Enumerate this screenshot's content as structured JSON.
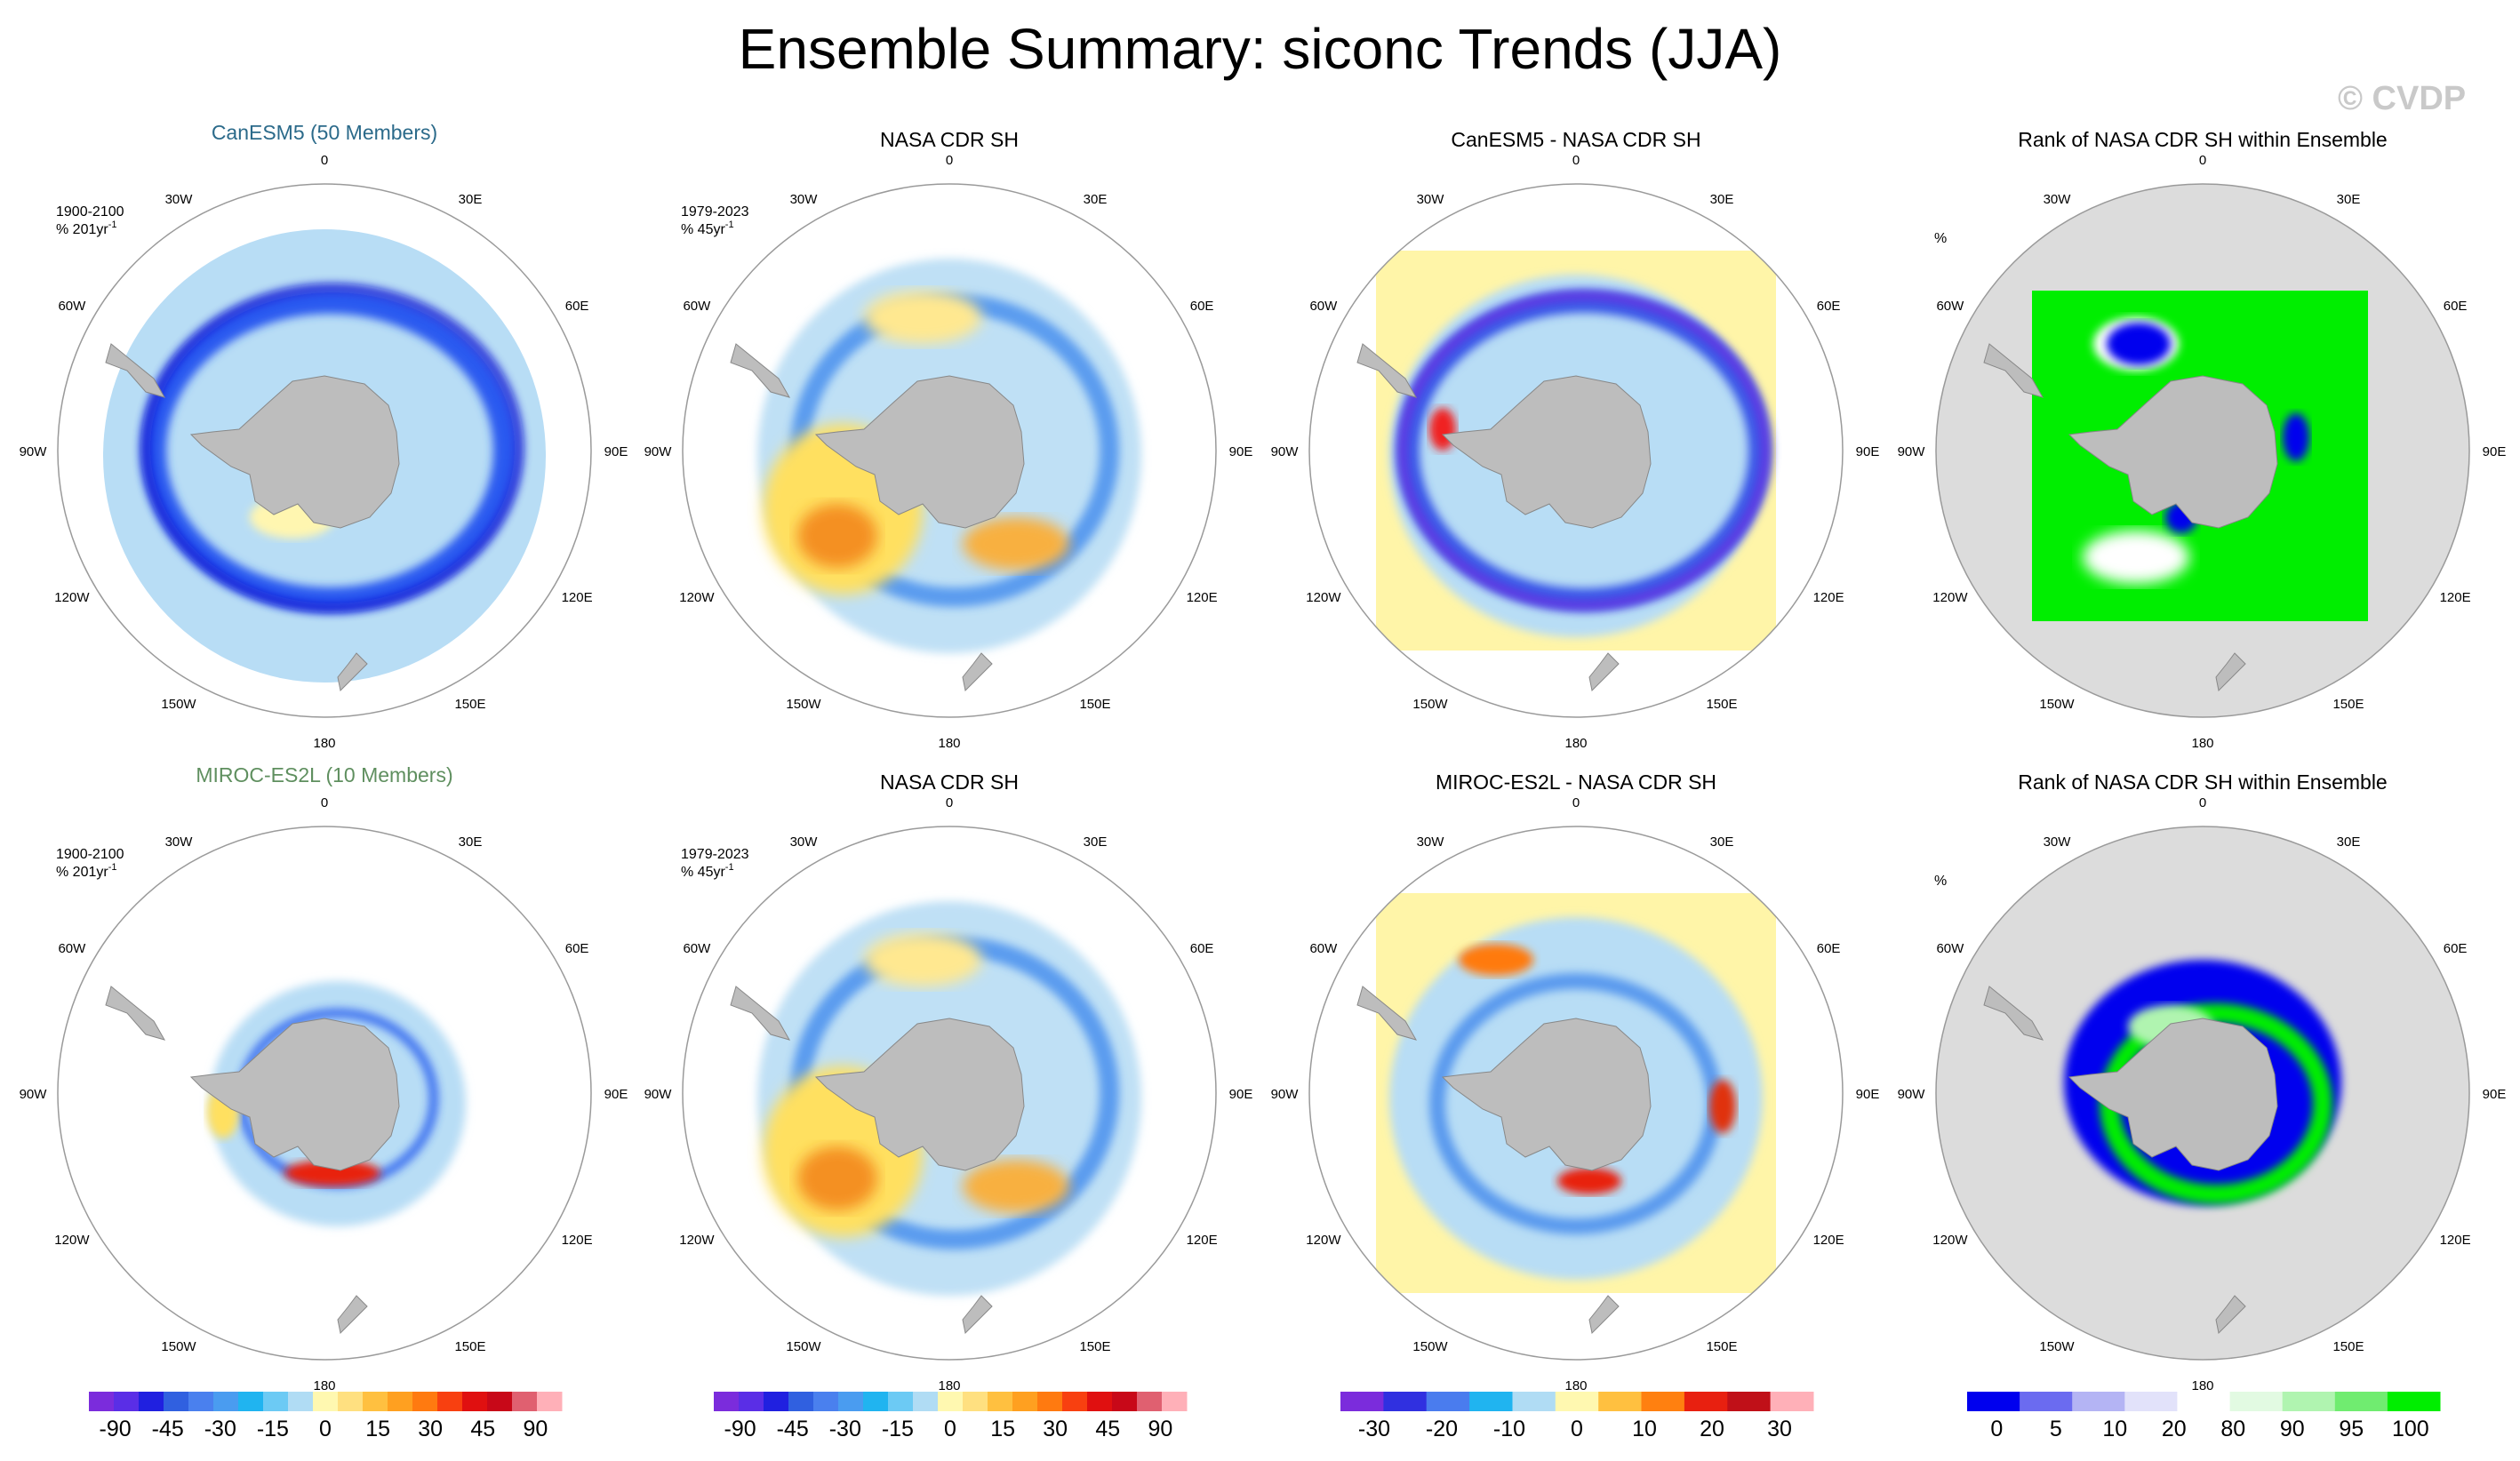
{
  "title": "Ensemble Summary: siconc Trends (JJA)",
  "watermark": "© CVDP",
  "lon_labels": [
    "0",
    "30E",
    "60E",
    "90E",
    "120E",
    "150E",
    "180",
    "150W",
    "120W",
    "90W",
    "60W",
    "30W"
  ],
  "rows": [
    {
      "panels": [
        {
          "kind": "model",
          "title": "CanESM5 (50 Members)",
          "title_color": "#2b6a8a",
          "period": "1900-2100",
          "units": "% 201yr",
          "units_sup": "-1"
        },
        {
          "kind": "obs",
          "title": "NASA CDR SH",
          "period": "1979-2023",
          "units": "% 45yr",
          "units_sup": "-1"
        },
        {
          "kind": "diff",
          "title": "CanESM5 - NASA CDR SH"
        },
        {
          "kind": "rank",
          "title": "Rank of NASA CDR SH within Ensemble",
          "units": "%"
        }
      ]
    },
    {
      "panels": [
        {
          "kind": "model",
          "title": "MIROC-ES2L (10 Members)",
          "title_color": "#5f8f5f",
          "period": "1900-2100",
          "units": "% 201yr",
          "units_sup": "-1"
        },
        {
          "kind": "obs",
          "title": "NASA CDR SH",
          "period": "1979-2023",
          "units": "% 45yr",
          "units_sup": "-1"
        },
        {
          "kind": "diff",
          "title": "MIROC-ES2L - NASA CDR SH"
        },
        {
          "kind": "rank",
          "title": "Rank of NASA CDR SH within Ensemble",
          "units": "%"
        }
      ]
    }
  ],
  "colorbars": [
    {
      "colors": [
        "#7b2cdc",
        "#5a2ee6",
        "#2020e0",
        "#3060e0",
        "#4a80ee",
        "#4a9cf0",
        "#20b4f0",
        "#6ccaf4",
        "#b0dcf4",
        "#fff8b0",
        "#ffe080",
        "#ffc040",
        "#ffa020",
        "#ff7a10",
        "#f84010",
        "#e01010",
        "#c80818",
        "#e06070",
        "#ffb0b8"
      ],
      "labels": [
        "-90",
        "-45",
        "-30",
        "-15",
        "0",
        "15",
        "30",
        "45",
        "90"
      ]
    },
    {
      "colors": [
        "#7b2cdc",
        "#5a2ee6",
        "#2020e0",
        "#3060e0",
        "#4a80ee",
        "#4a9cf0",
        "#20b4f0",
        "#6ccaf4",
        "#b0dcf4",
        "#fff8b0",
        "#ffe080",
        "#ffc040",
        "#ffa020",
        "#ff7a10",
        "#f84010",
        "#e01010",
        "#c80818",
        "#e06070",
        "#ffb0b8"
      ],
      "labels": [
        "-90",
        "-45",
        "-30",
        "-15",
        "0",
        "15",
        "30",
        "45",
        "90"
      ]
    },
    {
      "colors": [
        "#7b2cdc",
        "#3030e0",
        "#4a7cee",
        "#20b4f0",
        "#b0dcf4",
        "#fff8b0",
        "#ffc040",
        "#ff8010",
        "#e82010",
        "#c01018",
        "#ffb0b8"
      ],
      "labels": [
        "-30",
        "-20",
        "-10",
        "0",
        "10",
        "20",
        "30"
      ]
    },
    {
      "colors": [
        "#0000ee",
        "#6b6bf0",
        "#b4b4f4",
        "#e2e2fa",
        "#ffffff",
        "#e2fae2",
        "#b0f4b0",
        "#70ec70",
        "#00ee00"
      ],
      "labels": [
        "0",
        "5",
        "10",
        "20",
        "80",
        "90",
        "95",
        "100"
      ]
    }
  ],
  "chart_data": [
    {
      "type": "heatmap",
      "title": "CanESM5 (50 Members)",
      "projection": "south polar stereographic",
      "field": "siconc trend",
      "units": "% 201yr-1",
      "period": "1900-2100",
      "levels": [
        -90,
        -45,
        -30,
        -15,
        0,
        15,
        30,
        45,
        90
      ]
    },
    {
      "type": "heatmap",
      "title": "NASA CDR SH",
      "projection": "south polar stereographic",
      "field": "siconc trend",
      "units": "% 45yr-1",
      "period": "1979-2023",
      "levels": [
        -90,
        -45,
        -30,
        -15,
        0,
        15,
        30,
        45,
        90
      ]
    },
    {
      "type": "heatmap",
      "title": "CanESM5 - NASA CDR SH",
      "projection": "south polar stereographic",
      "levels": [
        -30,
        -20,
        -10,
        0,
        10,
        20,
        30
      ]
    },
    {
      "type": "heatmap",
      "title": "Rank of NASA CDR SH within Ensemble",
      "units": "%",
      "levels": [
        0,
        5,
        10,
        20,
        80,
        90,
        95,
        100
      ]
    },
    {
      "type": "heatmap",
      "title": "MIROC-ES2L (10 Members)",
      "projection": "south polar stereographic",
      "field": "siconc trend",
      "units": "% 201yr-1",
      "period": "1900-2100",
      "levels": [
        -90,
        -45,
        -30,
        -15,
        0,
        15,
        30,
        45,
        90
      ]
    },
    {
      "type": "heatmap",
      "title": "NASA CDR SH",
      "projection": "south polar stereographic",
      "field": "siconc trend",
      "units": "% 45yr-1",
      "period": "1979-2023",
      "levels": [
        -90,
        -45,
        -30,
        -15,
        0,
        15,
        30,
        45,
        90
      ]
    },
    {
      "type": "heatmap",
      "title": "MIROC-ES2L - NASA CDR SH",
      "projection": "south polar stereographic",
      "levels": [
        -30,
        -20,
        -10,
        0,
        10,
        20,
        30
      ]
    },
    {
      "type": "heatmap",
      "title": "Rank of NASA CDR SH within Ensemble",
      "units": "%",
      "levels": [
        0,
        5,
        10,
        20,
        80,
        90,
        95,
        100
      ]
    }
  ]
}
